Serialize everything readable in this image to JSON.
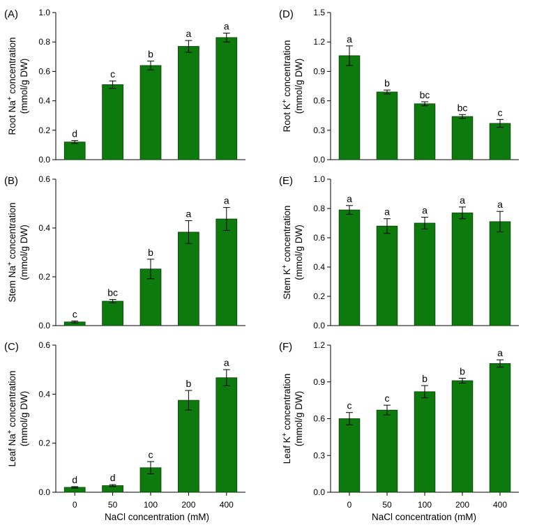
{
  "x_axis_title": "NaCl concentration (mM)",
  "y_unit": "(mmol/g DW)",
  "bar_color": "#0c7a0c",
  "chart_data": [
    {
      "panel": "(A)",
      "type": "bar",
      "ylabel_prefix": "Root Na",
      "ylabel_sup": "+",
      "ylabel_suffix": " concentration",
      "categories": [
        "0",
        "50",
        "100",
        "200",
        "400"
      ],
      "values": [
        0.12,
        0.51,
        0.64,
        0.77,
        0.83
      ],
      "errors": [
        0.01,
        0.025,
        0.03,
        0.04,
        0.03
      ],
      "letters": [
        "d",
        "c",
        "b",
        "a",
        "a"
      ],
      "ylim": [
        0,
        1.0
      ],
      "yticks": [
        "0.0",
        "0.2",
        "0.4",
        "0.6",
        "0.8",
        "1.0"
      ]
    },
    {
      "panel": "(B)",
      "type": "bar",
      "ylabel_prefix": "Stem Na",
      "ylabel_sup": "+",
      "ylabel_suffix": " concentration",
      "categories": [
        "0",
        "50",
        "100",
        "200",
        "400"
      ],
      "values": [
        0.015,
        0.1,
        0.232,
        0.383,
        0.437
      ],
      "errors": [
        0.004,
        0.007,
        0.04,
        0.047,
        0.047
      ],
      "letters": [
        "c",
        "bc",
        "b",
        "a",
        "a"
      ],
      "ylim": [
        0,
        0.6
      ],
      "yticks": [
        "0.0",
        "0.2",
        "0.4",
        "0.6"
      ]
    },
    {
      "panel": "(C)",
      "type": "bar",
      "ylabel_prefix": "Leaf Na",
      "ylabel_sup": "+",
      "ylabel_suffix": " concentration",
      "categories": [
        "0",
        "50",
        "100",
        "200",
        "400"
      ],
      "values": [
        0.02,
        0.027,
        0.1,
        0.375,
        0.467
      ],
      "errors": [
        0.003,
        0.004,
        0.025,
        0.04,
        0.033
      ],
      "letters": [
        "d",
        "d",
        "c",
        "b",
        "a"
      ],
      "ylim": [
        0,
        0.6
      ],
      "yticks": [
        "0.0",
        "0.2",
        "0.4",
        "0.6"
      ]
    },
    {
      "panel": "(D)",
      "type": "bar",
      "ylabel_prefix": "Root K",
      "ylabel_sup": "+",
      "ylabel_suffix": " concentration",
      "categories": [
        "0",
        "50",
        "100",
        "200",
        "400"
      ],
      "values": [
        1.06,
        0.69,
        0.57,
        0.44,
        0.37
      ],
      "errors": [
        0.1,
        0.02,
        0.02,
        0.02,
        0.04
      ],
      "letters": [
        "a",
        "b",
        "bc",
        "bc",
        "c"
      ],
      "ylim": [
        0,
        1.5
      ],
      "yticks": [
        "0.0",
        "0.3",
        "0.6",
        "0.9",
        "1.2",
        "1.5"
      ]
    },
    {
      "panel": "(E)",
      "type": "bar",
      "ylabel_prefix": "Stem K",
      "ylabel_sup": "+",
      "ylabel_suffix": " concentration",
      "categories": [
        "0",
        "50",
        "100",
        "200",
        "400"
      ],
      "values": [
        0.79,
        0.68,
        0.7,
        0.77,
        0.71
      ],
      "errors": [
        0.03,
        0.05,
        0.04,
        0.04,
        0.07
      ],
      "letters": [
        "a",
        "a",
        "a",
        "a",
        "a"
      ],
      "ylim": [
        0,
        1.0
      ],
      "yticks": [
        "0.0",
        "0.2",
        "0.4",
        "0.6",
        "0.8",
        "1.0"
      ]
    },
    {
      "panel": "(F)",
      "type": "bar",
      "ylabel_prefix": "Leaf K",
      "ylabel_sup": "+",
      "ylabel_suffix": " concentration",
      "categories": [
        "0",
        "50",
        "100",
        "200",
        "400"
      ],
      "values": [
        0.6,
        0.67,
        0.82,
        0.91,
        1.05
      ],
      "errors": [
        0.05,
        0.04,
        0.05,
        0.02,
        0.03
      ],
      "letters": [
        "c",
        "c",
        "b",
        "b",
        "a"
      ],
      "ylim": [
        0,
        1.2
      ],
      "yticks": [
        "0.0",
        "0.3",
        "0.6",
        "0.9",
        "1.2"
      ]
    }
  ]
}
